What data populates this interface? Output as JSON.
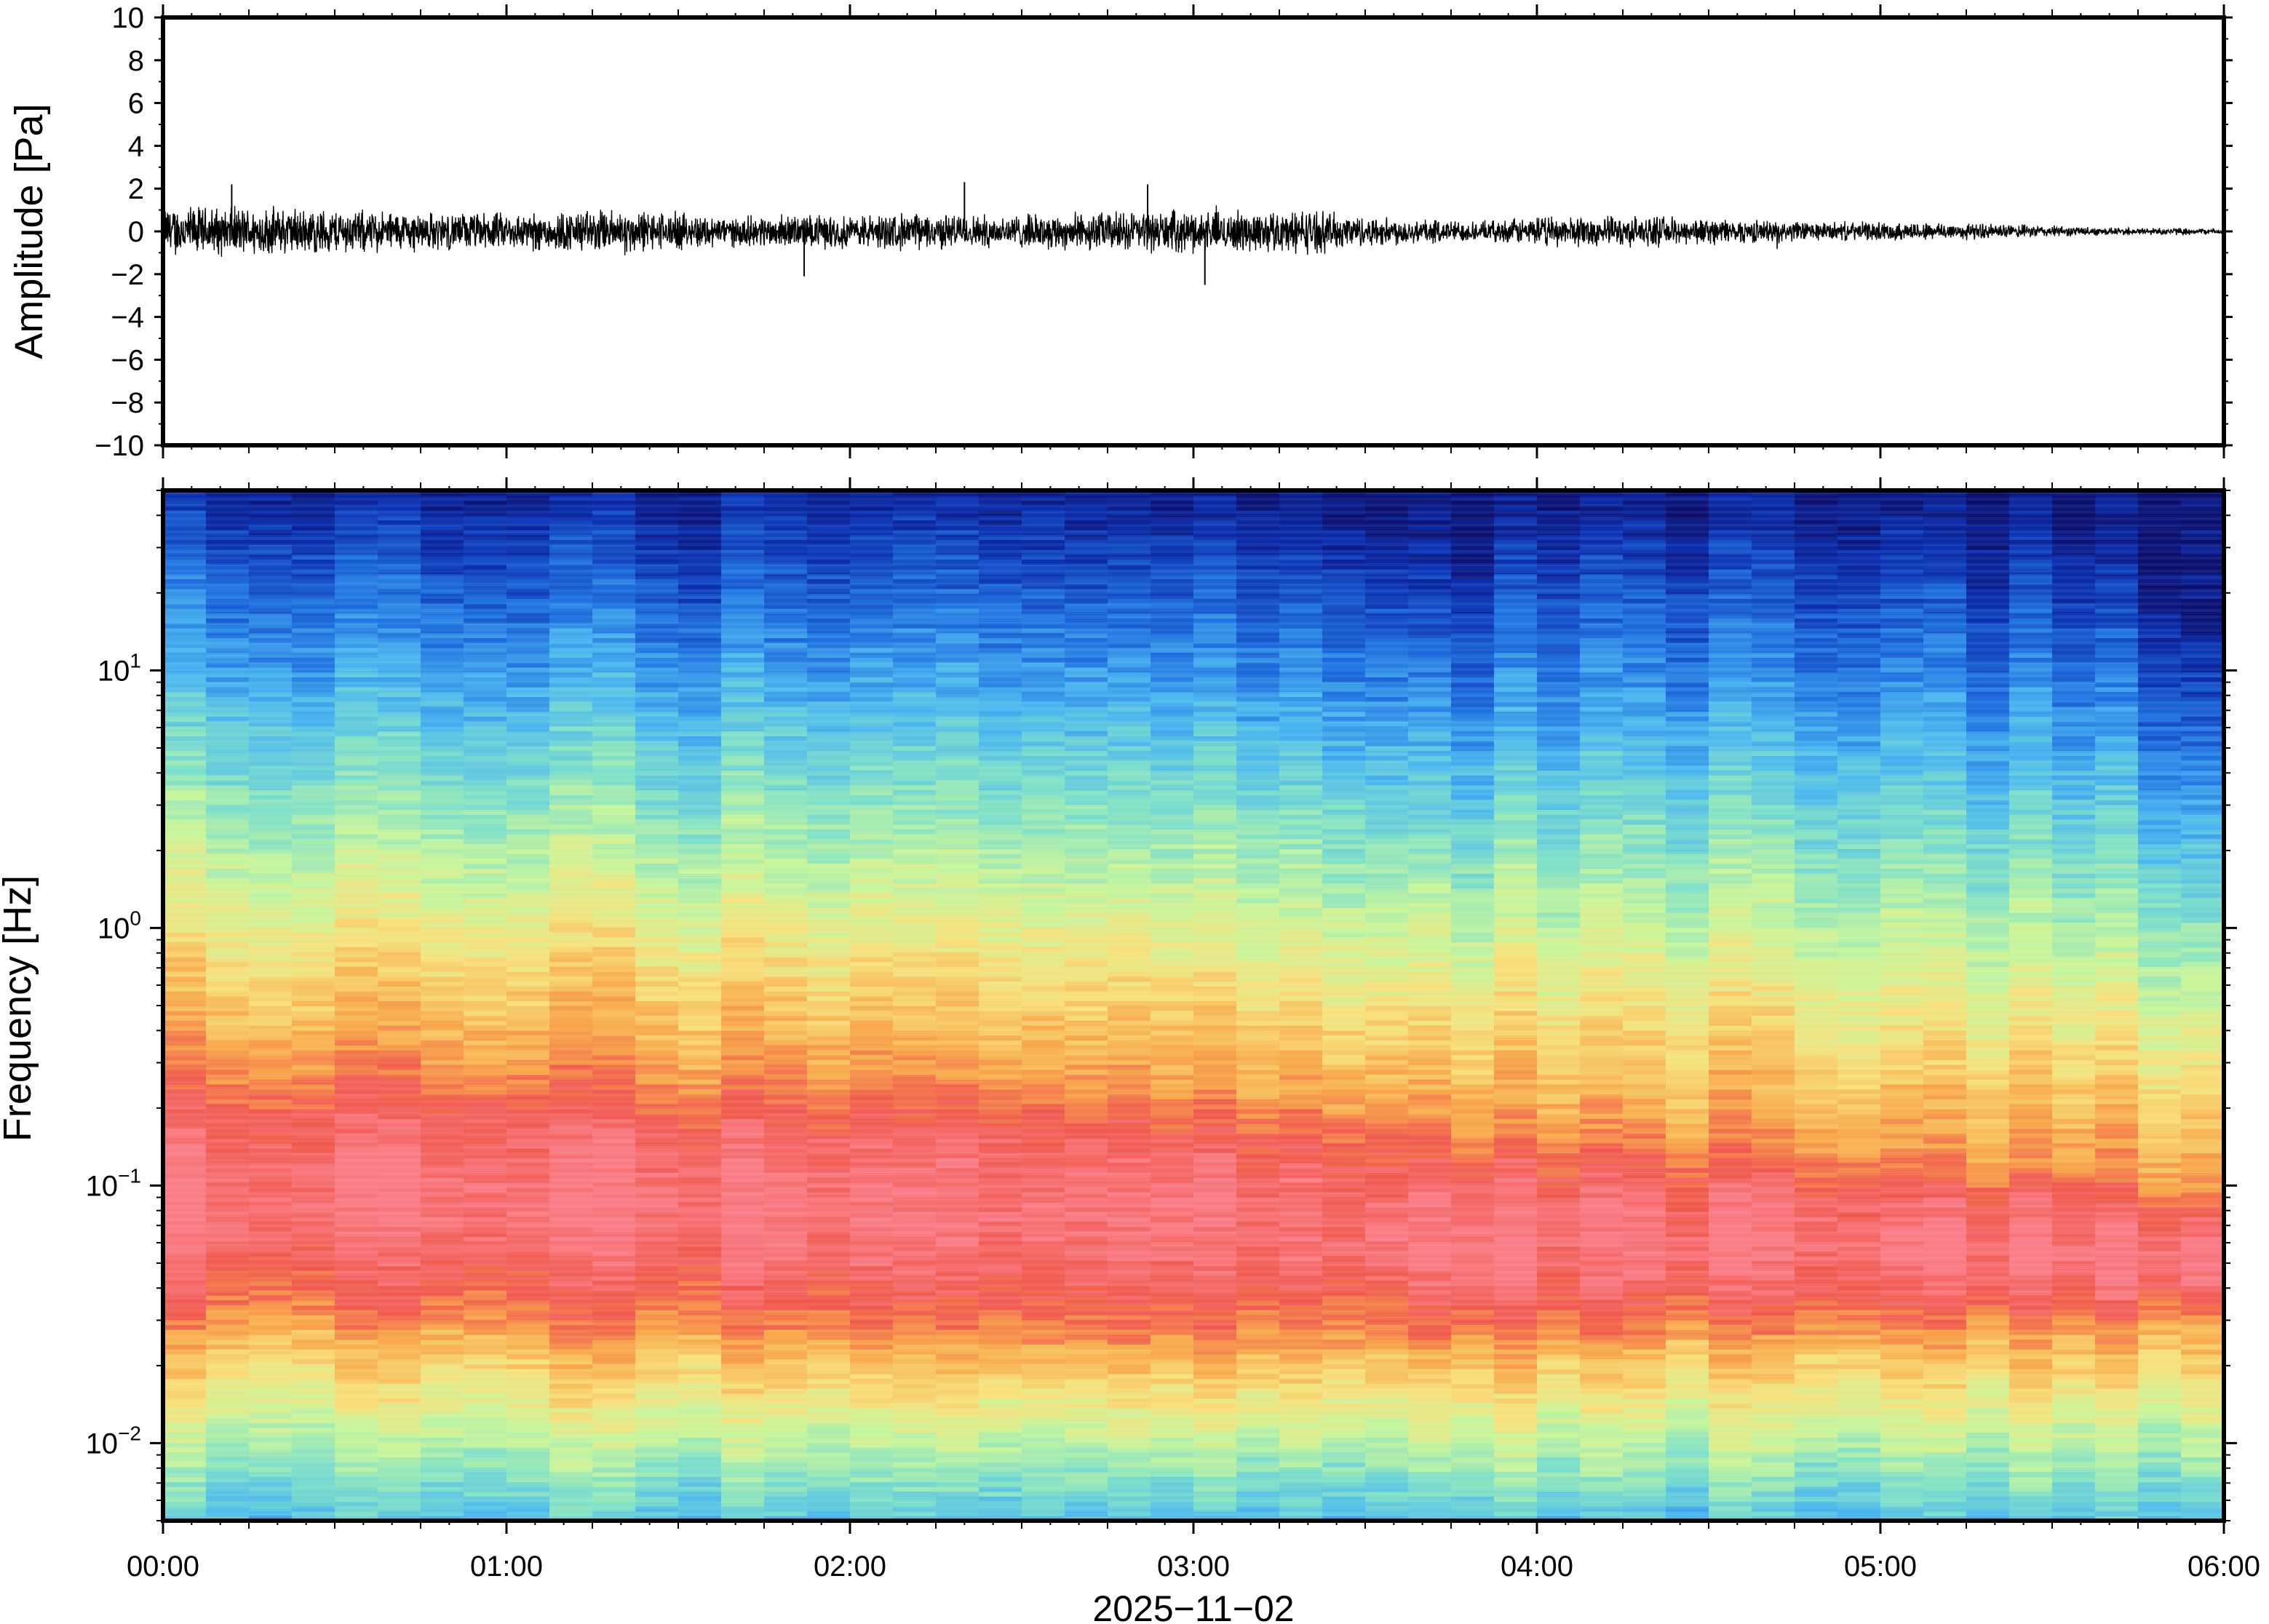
{
  "chart_data": [
    {
      "type": "line",
      "panel": "waveform",
      "ylabel": "Amplitude [Pa]",
      "ylim": [
        -10,
        10
      ],
      "yticks": [
        10,
        8,
        6,
        4,
        2,
        0,
        -2,
        -4,
        -6,
        -8,
        -10
      ],
      "ytick_labels": [
        "10",
        "8",
        "6",
        "4",
        "2",
        "0",
        "−2",
        "−4",
        "−6",
        "−8",
        "−10"
      ],
      "xlim": [
        "00:00",
        "06:00"
      ],
      "series": [
        {
          "color": "#000000",
          "envelope_minutes": [
            0,
            10,
            20,
            30,
            40,
            50,
            60,
            70,
            80,
            90,
            100,
            110,
            120,
            130,
            140,
            150,
            160,
            170,
            180,
            190,
            200,
            210,
            220,
            230,
            240,
            250,
            260,
            270,
            280,
            290,
            300,
            310,
            320,
            330,
            340,
            350,
            360
          ],
          "envelope_amplitude_pa": [
            1.4,
            1.3,
            1.3,
            1.2,
            1.1,
            1.0,
            1.0,
            1.1,
            1.2,
            1.0,
            0.8,
            0.9,
            0.9,
            1.0,
            0.9,
            0.9,
            1.0,
            1.1,
            1.1,
            1.1,
            1.2,
            0.8,
            0.7,
            0.5,
            0.8,
            0.8,
            0.8,
            0.7,
            0.6,
            0.5,
            0.5,
            0.5,
            0.4,
            0.3,
            0.2,
            0.2,
            0.15
          ],
          "peak_values_pa": [
            2.2,
            -2.1,
            2.3,
            2.2,
            -2.5
          ]
        }
      ]
    },
    {
      "type": "heatmap",
      "panel": "spectrogram",
      "ylabel": "Frequency [Hz]",
      "xlabel": "2025−11−02",
      "y_scale": "log",
      "ylim_hz": [
        0.005,
        50
      ],
      "yticks_hz": [
        10,
        1,
        0.1,
        0.01
      ],
      "ytick_labels": [
        {
          "base": "10",
          "exp": "1"
        },
        {
          "base": "10",
          "exp": "0"
        },
        {
          "base": "10",
          "exp": "−1"
        },
        {
          "base": "10",
          "exp": "−2"
        }
      ],
      "x_tick_labels": [
        "00:00",
        "01:00",
        "02:00",
        "03:00",
        "04:00",
        "05:00",
        "06:00"
      ],
      "colormap": [
        "#0b0f6e",
        "#0a2fb0",
        "#1d6fe0",
        "#4ab7ef",
        "#7ee0c8",
        "#c7f59a",
        "#f7e07a",
        "#f8a84a",
        "#f0584c",
        "#fa7c86"
      ],
      "time_bins_minutes": [
        0,
        30,
        60,
        90,
        120,
        150,
        180,
        210,
        220,
        230,
        240,
        270,
        300,
        330,
        345,
        360
      ],
      "blue_cutoff_hz": [
        38,
        32,
        30,
        28,
        30,
        30,
        28,
        25,
        19,
        15,
        24,
        26,
        24,
        19,
        14,
        6
      ],
      "red_upper_hz": [
        0.3,
        0.32,
        0.31,
        0.29,
        0.28,
        0.27,
        0.25,
        0.22,
        0.18,
        0.15,
        0.17,
        0.16,
        0.14,
        0.12,
        0.11,
        0.09
      ],
      "red_lower_hz": [
        0.028,
        0.028,
        0.027,
        0.026,
        0.025,
        0.024,
        0.023,
        0.023,
        0.024,
        0.025,
        0.025,
        0.026,
        0.026,
        0.027,
        0.028,
        0.03
      ]
    }
  ]
}
